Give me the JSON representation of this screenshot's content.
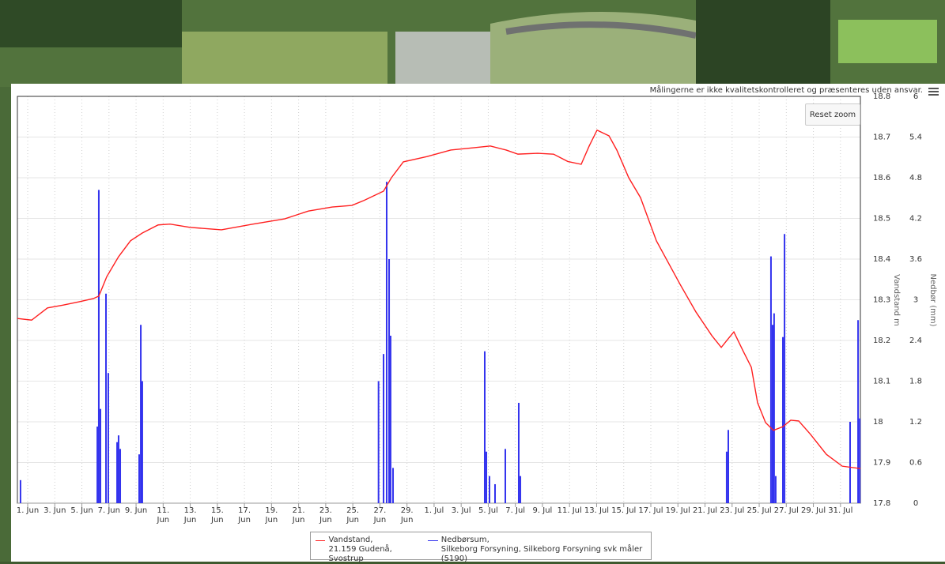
{
  "ui": {
    "reset_zoom": "Reset zoom"
  },
  "chart_data": {
    "type": "line-bar",
    "note": "Målingerne er ikke kvalitetskontrolleret og præsenteres uden ansvar.",
    "y_label": "Vandstand m",
    "y2_label": "Nedbør (mm)",
    "xlim": [
      -0.76,
      61.47
    ],
    "xticks": [
      {
        "value": 0,
        "label": "1. Jun"
      },
      {
        "value": 2,
        "label": "3. Jun"
      },
      {
        "value": 4,
        "label": "5. Jun"
      },
      {
        "value": 6,
        "label": "7. Jun"
      },
      {
        "value": 8,
        "label": "9. Jun"
      },
      {
        "value": 10,
        "label": "11.\nJun"
      },
      {
        "value": 12,
        "label": "13.\nJun"
      },
      {
        "value": 14,
        "label": "15.\nJun"
      },
      {
        "value": 16,
        "label": "17.\nJun"
      },
      {
        "value": 18,
        "label": "19.\nJun"
      },
      {
        "value": 20,
        "label": "21.\nJun"
      },
      {
        "value": 22,
        "label": "23.\nJun"
      },
      {
        "value": 24,
        "label": "25.\nJun"
      },
      {
        "value": 26,
        "label": "27.\nJun"
      },
      {
        "value": 28,
        "label": "29.\nJun"
      },
      {
        "value": 30,
        "label": "1. Jul"
      },
      {
        "value": 32,
        "label": "3. Jul"
      },
      {
        "value": 34,
        "label": "5. Jul"
      },
      {
        "value": 36,
        "label": "7. Jul"
      },
      {
        "value": 38,
        "label": "9. Jul"
      },
      {
        "value": 40,
        "label": "11. Jul"
      },
      {
        "value": 42,
        "label": "13. Jul"
      },
      {
        "value": 44,
        "label": "15. Jul"
      },
      {
        "value": 46,
        "label": "17. Jul"
      },
      {
        "value": 48,
        "label": "19. Jul"
      },
      {
        "value": 50,
        "label": "21. Jul"
      },
      {
        "value": 52,
        "label": "23. Jul"
      },
      {
        "value": 54,
        "label": "25. Jul"
      },
      {
        "value": 56,
        "label": "27. Jul"
      },
      {
        "value": 58,
        "label": "29. Jul"
      },
      {
        "value": 60,
        "label": "31. Jul"
      }
    ],
    "ylim": [
      17.8,
      18.8
    ],
    "yticks": [
      17.8,
      17.9,
      18,
      18.1,
      18.2,
      18.3,
      18.4,
      18.5,
      18.6,
      18.7,
      18.8
    ],
    "y2lim": [
      0,
      6
    ],
    "y2ticks": [
      0,
      0.6,
      1.2,
      1.8,
      2.4,
      3,
      3.6,
      4.2,
      4.8,
      5.4,
      6
    ],
    "grid": true,
    "series": [
      {
        "name": "Vandstand,\n21.159 Gudenå, Svostrup",
        "color": "#ff2020",
        "kind": "line",
        "x": [
          -0.76,
          0.29,
          1.46,
          2.63,
          3.79,
          4.85,
          5.25,
          5.84,
          6.71,
          7.59,
          8.46,
          9.63,
          10.51,
          11.97,
          14.3,
          16.64,
          18.97,
          20.72,
          22.48,
          23.93,
          24.81,
          26.27,
          26.85,
          27.73,
          29.48,
          31.23,
          32.98,
          34.15,
          35.32,
          36.19,
          37.65,
          38.82,
          39.87,
          40.86,
          41.45,
          42.03,
          42.91,
          43.49,
          44.37,
          45.24,
          46.41,
          48.16,
          49.33,
          50.5,
          51.2,
          51.66,
          52.13,
          52.83,
          53.42,
          53.88,
          54.47,
          55.05,
          55.75,
          56.33,
          56.92,
          57.79,
          58.96,
          60.13,
          61.47
        ],
        "values": [
          18.254,
          18.25,
          18.28,
          18.287,
          18.295,
          18.303,
          18.309,
          18.357,
          18.406,
          18.445,
          18.464,
          18.484,
          18.486,
          18.478,
          18.472,
          18.486,
          18.499,
          18.518,
          18.528,
          18.532,
          18.544,
          18.567,
          18.6,
          18.639,
          18.652,
          18.668,
          18.674,
          18.678,
          18.668,
          18.658,
          18.66,
          18.658,
          18.64,
          18.633,
          18.678,
          18.717,
          18.703,
          18.668,
          18.6,
          18.551,
          18.445,
          18.338,
          18.27,
          18.212,
          18.183,
          18.202,
          18.221,
          18.173,
          18.134,
          18.047,
          17.998,
          17.979,
          17.988,
          18.004,
          18.002,
          17.969,
          17.92,
          17.891,
          17.885
        ]
      },
      {
        "name": "Nedbørsum,\nSilkeborg Forsyning, Silkeborg Forsyning svk måler (5190)",
        "color": "#3333ee",
        "kind": "bar",
        "axis": "y2",
        "x": [
          -0.53,
          5.14,
          5.25,
          5.37,
          5.78,
          5.95,
          6.6,
          6.71,
          6.83,
          8.23,
          8.35,
          8.46,
          25.9,
          26.27,
          26.5,
          26.68,
          26.79,
          26.97,
          33.74,
          33.86,
          34.09,
          34.5,
          35.26,
          36.25,
          36.37,
          51.6,
          51.72,
          54.87,
          54.99,
          55.1,
          55.22,
          55.75,
          55.87,
          60.71,
          61.3,
          61.42
        ],
        "values": [
          0.34,
          1.13,
          4.62,
          1.39,
          3.09,
          1.92,
          0.9,
          1.0,
          0.8,
          0.72,
          2.63,
          1.8,
          1.8,
          2.2,
          4.74,
          3.6,
          2.47,
          0.52,
          2.24,
          0.76,
          0.4,
          0.28,
          0.8,
          1.48,
          0.4,
          0.76,
          1.08,
          3.64,
          2.63,
          2.8,
          0.4,
          2.45,
          3.97,
          1.2,
          2.7,
          1.25
        ]
      }
    ]
  }
}
